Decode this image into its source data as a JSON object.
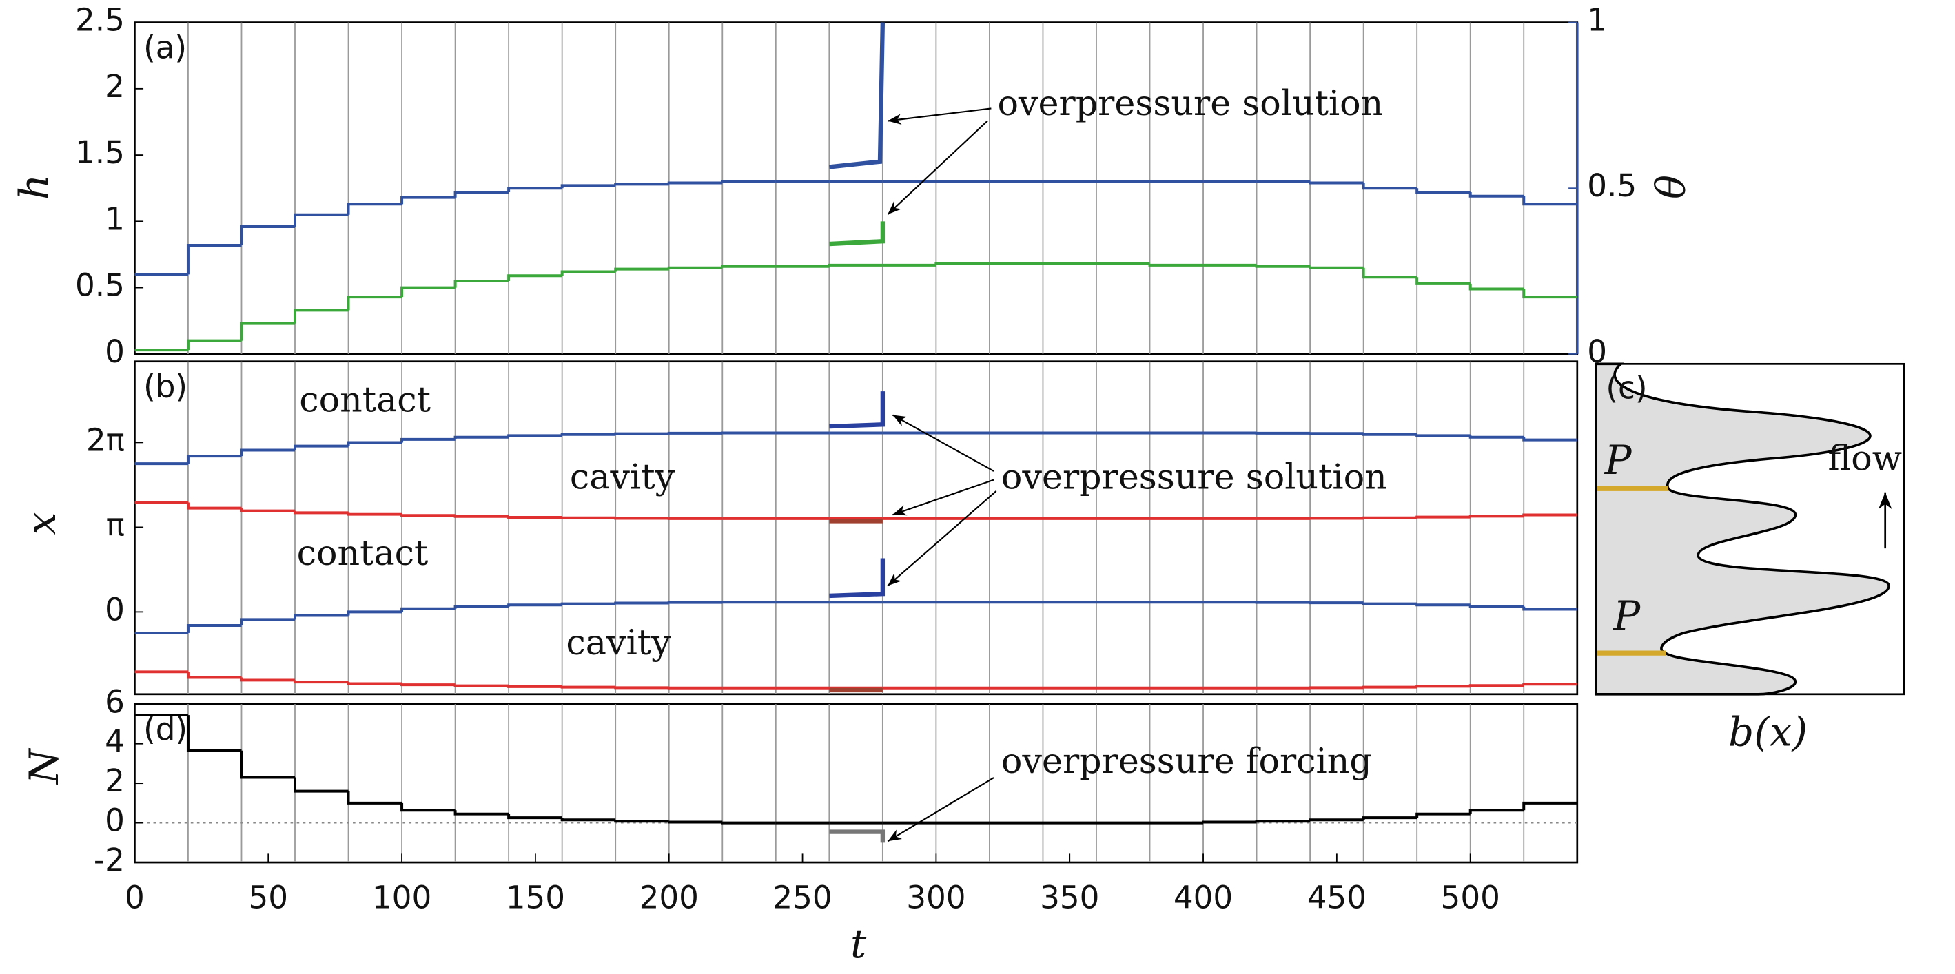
{
  "chart_data": [
    {
      "type": "step",
      "label": "(a)",
      "ylabel": "h",
      "y2label": "θ",
      "xlim": [
        0,
        540
      ],
      "ylim": [
        0,
        2.5
      ],
      "yticks": [
        0,
        0.5,
        1,
        1.5,
        2,
        2.5
      ],
      "y2lim": [
        0,
        1
      ],
      "y2ticks": [
        0,
        0.5,
        1
      ],
      "y2color": "#3050a0",
      "vlines": [
        20,
        40,
        60,
        80,
        100,
        120,
        140,
        160,
        180,
        200,
        220,
        240,
        260,
        280,
        300,
        320,
        340,
        360,
        380,
        400,
        420,
        440,
        460,
        480,
        500,
        520
      ],
      "annotations": [
        "overpressure solution"
      ],
      "series": [
        {
          "color": "#3050a0",
          "axis": "y2",
          "drawstyle": "steps-post",
          "x": [
            0,
            20,
            40,
            60,
            80,
            100,
            120,
            140,
            160,
            180,
            200,
            220,
            240,
            260,
            280,
            300,
            320,
            340,
            360,
            380,
            400,
            420,
            440,
            460,
            480,
            500,
            520
          ],
          "values": [
            0.24,
            0.328,
            0.384,
            0.42,
            0.452,
            0.472,
            0.488,
            0.5,
            0.508,
            0.512,
            0.516,
            0.52,
            0.52,
            0.52,
            0.52,
            0.52,
            0.52,
            0.52,
            0.52,
            0.52,
            0.52,
            0.52,
            0.516,
            0.5,
            0.488,
            0.476,
            0.452
          ]
        },
        {
          "color": "#3aa83a",
          "drawstyle": "steps-post",
          "x": [
            0,
            20,
            40,
            60,
            80,
            100,
            120,
            140,
            160,
            180,
            200,
            220,
            240,
            260,
            280,
            300,
            320,
            340,
            360,
            380,
            400,
            420,
            440,
            460,
            480,
            500,
            520
          ],
          "values": [
            0.03,
            0.1,
            0.23,
            0.33,
            0.43,
            0.5,
            0.55,
            0.59,
            0.62,
            0.64,
            0.65,
            0.66,
            0.66,
            0.67,
            0.67,
            0.68,
            0.68,
            0.68,
            0.68,
            0.67,
            0.67,
            0.66,
            0.65,
            0.58,
            0.53,
            0.49,
            0.43
          ]
        },
        {
          "color": "#3aa83a",
          "drawstyle": "line",
          "x": [
            260,
            280,
            280
          ],
          "values": [
            0.83,
            0.85,
            1.0
          ]
        },
        {
          "color": "#3050a0",
          "axis": "y2",
          "drawstyle": "line",
          "x": [
            260,
            279,
            280
          ],
          "values": [
            0.564,
            0.58,
            1
          ]
        }
      ]
    },
    {
      "type": "step",
      "label": "(b)",
      "ylabel": "x",
      "xlim": [
        0,
        540
      ],
      "ylim": [
        -3.05,
        9.29
      ],
      "yticks": [
        0,
        {
          "value": 3.1416,
          "label": "π"
        },
        {
          "value": 6.2832,
          "label": "2π"
        }
      ],
      "vlines": [
        20,
        40,
        60,
        80,
        100,
        120,
        140,
        160,
        180,
        200,
        220,
        240,
        260,
        280,
        300,
        320,
        340,
        360,
        380,
        400,
        420,
        440,
        460,
        480,
        500,
        520
      ],
      "annotations": [
        "contact",
        "cavity",
        "contact",
        "cavity",
        "overpressure solution"
      ],
      "series": [
        {
          "color": "#3050a0",
          "drawstyle": "steps-post",
          "x": [
            0,
            20,
            40,
            60,
            80,
            100,
            120,
            140,
            160,
            180,
            200,
            220,
            240,
            260,
            280,
            300,
            320,
            340,
            360,
            380,
            400,
            420,
            440,
            460,
            480,
            500,
            520
          ],
          "values": [
            5.5,
            5.78,
            6.0,
            6.15,
            6.28,
            6.4,
            6.48,
            6.54,
            6.58,
            6.61,
            6.63,
            6.64,
            6.64,
            6.64,
            6.64,
            6.64,
            6.64,
            6.64,
            6.64,
            6.64,
            6.64,
            6.63,
            6.62,
            6.58,
            6.54,
            6.48,
            6.38
          ]
        },
        {
          "color": "#e03030",
          "drawstyle": "steps-post",
          "x": [
            0,
            20,
            40,
            60,
            80,
            100,
            120,
            140,
            160,
            180,
            200,
            220,
            240,
            260,
            280,
            300,
            320,
            340,
            360,
            380,
            400,
            420,
            440,
            460,
            480,
            500,
            520
          ],
          "values": [
            4.06,
            3.85,
            3.75,
            3.68,
            3.62,
            3.58,
            3.54,
            3.51,
            3.49,
            3.47,
            3.46,
            3.46,
            3.46,
            3.46,
            3.46,
            3.46,
            3.46,
            3.46,
            3.46,
            3.46,
            3.46,
            3.46,
            3.47,
            3.49,
            3.52,
            3.55,
            3.6
          ]
        },
        {
          "color": "#3050a0",
          "drawstyle": "steps-post",
          "x": [
            0,
            20,
            40,
            60,
            80,
            100,
            120,
            140,
            160,
            180,
            200,
            220,
            240,
            260,
            280,
            300,
            320,
            340,
            360,
            380,
            400,
            420,
            440,
            460,
            480,
            500,
            520
          ],
          "values": [
            -0.78,
            -0.5,
            -0.28,
            -0.13,
            0,
            0.12,
            0.2,
            0.26,
            0.3,
            0.33,
            0.35,
            0.36,
            0.36,
            0.36,
            0.36,
            0.36,
            0.36,
            0.36,
            0.36,
            0.36,
            0.36,
            0.35,
            0.34,
            0.3,
            0.26,
            0.2,
            0.1
          ]
        },
        {
          "color": "#e03030",
          "drawstyle": "steps-post",
          "x": [
            0,
            20,
            40,
            60,
            80,
            100,
            120,
            140,
            160,
            180,
            200,
            220,
            240,
            260,
            280,
            300,
            320,
            340,
            360,
            380,
            400,
            420,
            440,
            460,
            480,
            500,
            520
          ],
          "values": [
            -2.22,
            -2.43,
            -2.53,
            -2.6,
            -2.66,
            -2.7,
            -2.74,
            -2.77,
            -2.79,
            -2.81,
            -2.82,
            -2.82,
            -2.82,
            -2.82,
            -2.82,
            -2.82,
            -2.82,
            -2.82,
            -2.82,
            -2.82,
            -2.82,
            -2.82,
            -2.81,
            -2.79,
            -2.76,
            -2.73,
            -2.68
          ]
        },
        {
          "color": "#2a40a0",
          "drawstyle": "line",
          "x": [
            260,
            280,
            280
          ],
          "values": [
            6.88,
            6.95,
            8.18
          ]
        },
        {
          "color": "#a04030",
          "drawstyle": "line",
          "x": [
            260,
            280
          ],
          "values": [
            3.37,
            3.37
          ]
        },
        {
          "color": "#2a40a0",
          "drawstyle": "line",
          "x": [
            260,
            280,
            280
          ],
          "values": [
            0.6,
            0.67,
            1.99
          ]
        },
        {
          "color": "#a04030",
          "drawstyle": "line",
          "x": [
            260,
            280
          ],
          "values": [
            -2.9,
            -2.9
          ]
        }
      ]
    },
    {
      "type": "step",
      "label": "(d)",
      "ylabel": "N",
      "xlabel": "t",
      "xlim": [
        0,
        540
      ],
      "xticks": [
        0,
        50,
        100,
        150,
        200,
        250,
        300,
        350,
        400,
        450,
        500
      ],
      "ylim": [
        -2,
        6
      ],
      "yticks": [
        -2,
        0,
        2,
        4,
        6
      ],
      "zeroline": true,
      "vlines": [
        20,
        40,
        60,
        80,
        100,
        120,
        140,
        160,
        180,
        200,
        220,
        240,
        260,
        280,
        300,
        320,
        340,
        360,
        380,
        400,
        420,
        440,
        460,
        480,
        500,
        520
      ],
      "annotations": [
        "overpressure forcing"
      ],
      "series": [
        {
          "color": "#000000",
          "drawstyle": "steps-post",
          "x": [
            0,
            20,
            40,
            60,
            80,
            100,
            120,
            140,
            160,
            180,
            200,
            220,
            240,
            260,
            280,
            300,
            320,
            340,
            360,
            380,
            400,
            420,
            440,
            460,
            480,
            500,
            520
          ],
          "values": [
            5.45,
            3.65,
            2.3,
            1.6,
            1.0,
            0.64,
            0.45,
            0.26,
            0.15,
            0.08,
            0.04,
            0,
            0,
            0,
            0,
            0,
            0,
            0,
            0,
            0,
            0.04,
            0.08,
            0.15,
            0.26,
            0.45,
            0.64,
            1.0
          ]
        },
        {
          "color": "#777777",
          "drawstyle": "line",
          "x": [
            260,
            280,
            280
          ],
          "values": [
            -0.45,
            -0.45,
            -1.0
          ]
        }
      ]
    },
    {
      "type": "profile",
      "label": "(c)",
      "markers": [
        "P",
        "P"
      ],
      "annotation": "flow",
      "xlabel": "b(x)"
    }
  ]
}
